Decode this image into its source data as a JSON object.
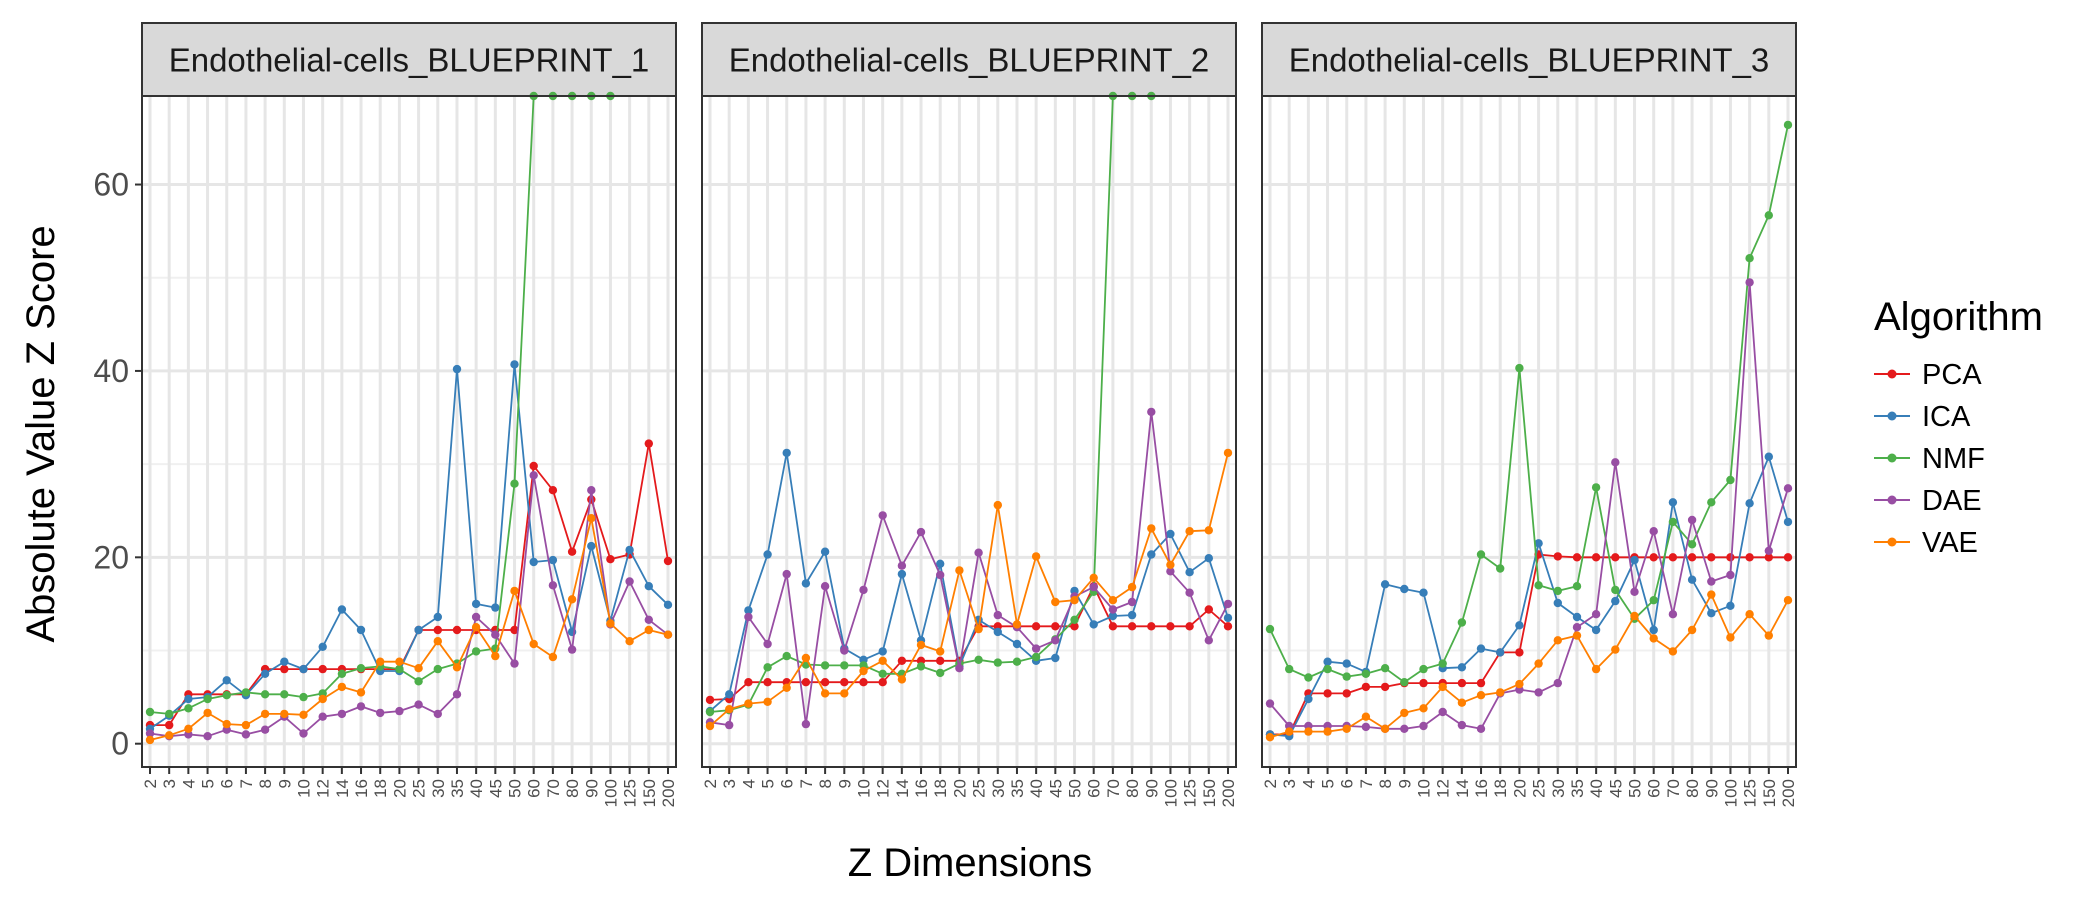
{
  "chart_data": {
    "type": "line",
    "xlabel": "Z Dimensions",
    "ylabel": "Absolute Value Z Score",
    "categories": [
      "2",
      "3",
      "4",
      "5",
      "6",
      "7",
      "8",
      "9",
      "10",
      "12",
      "14",
      "16",
      "18",
      "20",
      "25",
      "30",
      "35",
      "40",
      "45",
      "50",
      "60",
      "70",
      "80",
      "90",
      "100",
      "125",
      "150",
      "200"
    ],
    "ylim": [
      -2.5,
      69.5
    ],
    "yticks": [
      0,
      20,
      40,
      60
    ],
    "grid": true,
    "legend": {
      "title": "Algorithm",
      "position": "right"
    },
    "colors": {
      "PCA": "#e41a1c",
      "ICA": "#377eb8",
      "NMF": "#4daf4a",
      "DAE": "#984ea3",
      "VAE": "#ff7f00"
    },
    "panels": [
      {
        "title": "Endothelial-cells_BLUEPRINT_1",
        "series": [
          {
            "name": "PCA",
            "values": [
              2.0,
              2.0,
              5.3,
              5.3,
              5.3,
              5.3,
              8.0,
              8.0,
              8.0,
              8.0,
              8.0,
              8.0,
              8.0,
              8.0,
              12.2,
              12.2,
              12.2,
              12.2,
              12.2,
              12.2,
              29.8,
              27.2,
              20.6,
              26.2,
              19.8,
              20.3,
              32.2,
              19.6
            ]
          },
          {
            "name": "ICA",
            "values": [
              1.6,
              3.0,
              4.8,
              5.0,
              6.8,
              5.2,
              7.5,
              8.8,
              8.0,
              10.4,
              14.4,
              12.2,
              7.8,
              7.8,
              12.2,
              13.6,
              40.2,
              15.0,
              14.6,
              40.7,
              19.5,
              19.7,
              12.0,
              21.2,
              13.2,
              20.8,
              16.9,
              14.9
            ]
          },
          {
            "name": "NMF",
            "values": [
              3.4,
              3.2,
              3.8,
              4.8,
              5.2,
              5.5,
              5.3,
              5.3,
              5.0,
              5.4,
              7.5,
              8.1,
              8.3,
              8.0,
              6.7,
              8.0,
              8.6,
              9.9,
              10.2,
              27.9,
              69.5,
              69.5,
              69.5,
              69.5,
              69.5,
              null,
              null,
              null
            ]
          },
          {
            "name": "DAE",
            "values": [
              1.1,
              0.8,
              1.0,
              0.8,
              1.5,
              1.0,
              1.5,
              2.9,
              1.1,
              2.9,
              3.2,
              4.0,
              3.3,
              3.5,
              4.2,
              3.2,
              5.3,
              13.6,
              11.7,
              8.6,
              28.8,
              17.0,
              10.1,
              27.2,
              12.8,
              17.4,
              13.3,
              11.7
            ]
          },
          {
            "name": "VAE",
            "values": [
              0.4,
              0.9,
              1.6,
              3.3,
              2.1,
              2.0,
              3.2,
              3.2,
              3.1,
              4.8,
              6.1,
              5.5,
              8.8,
              8.8,
              8.1,
              11.0,
              8.2,
              12.5,
              9.4,
              16.4,
              10.7,
              9.3,
              15.5,
              24.2,
              12.9,
              11.0,
              12.2,
              11.7
            ]
          }
        ]
      },
      {
        "title": "Endothelial-cells_BLUEPRINT_2",
        "series": [
          {
            "name": "PCA",
            "values": [
              4.7,
              4.8,
              6.6,
              6.6,
              6.6,
              6.6,
              6.6,
              6.6,
              6.6,
              6.6,
              8.9,
              8.9,
              8.9,
              8.9,
              12.6,
              12.6,
              12.6,
              12.6,
              12.6,
              12.6,
              16.9,
              12.6,
              12.6,
              12.6,
              12.6,
              12.6,
              14.4,
              12.6
            ]
          },
          {
            "name": "ICA",
            "values": [
              3.5,
              5.3,
              14.3,
              20.3,
              31.2,
              17.2,
              20.6,
              10.2,
              9.0,
              9.9,
              18.2,
              11.1,
              19.3,
              8.3,
              13.3,
              12.0,
              10.7,
              8.9,
              9.2,
              16.4,
              12.8,
              13.7,
              13.8,
              20.3,
              22.5,
              18.4,
              19.9,
              13.5
            ]
          },
          {
            "name": "NMF",
            "values": [
              3.4,
              3.6,
              4.2,
              8.2,
              9.4,
              8.5,
              8.4,
              8.4,
              8.4,
              7.5,
              7.5,
              8.3,
              7.6,
              8.6,
              9.0,
              8.7,
              8.8,
              9.3,
              11.2,
              13.3,
              16.3,
              69.5,
              69.5,
              69.5,
              null,
              null,
              null,
              null
            ]
          },
          {
            "name": "DAE",
            "values": [
              2.3,
              2.0,
              13.6,
              10.7,
              18.2,
              2.1,
              16.9,
              10.0,
              16.5,
              24.5,
              19.1,
              22.7,
              18.1,
              8.1,
              20.5,
              13.8,
              12.5,
              10.2,
              11.1,
              15.8,
              16.8,
              14.4,
              15.2,
              35.6,
              18.5,
              16.2,
              11.1,
              15.0
            ]
          },
          {
            "name": "VAE",
            "values": [
              1.9,
              3.7,
              4.3,
              4.5,
              6.0,
              9.2,
              5.4,
              5.4,
              7.8,
              8.9,
              6.9,
              10.6,
              9.9,
              18.6,
              12.3,
              25.6,
              12.8,
              20.1,
              15.2,
              15.4,
              17.8,
              15.4,
              16.8,
              23.1,
              19.2,
              22.8,
              22.9,
              31.2
            ]
          }
        ]
      },
      {
        "title": "Endothelial-cells_BLUEPRINT_3",
        "series": [
          {
            "name": "PCA",
            "values": [
              1.0,
              1.0,
              5.4,
              5.4,
              5.4,
              6.1,
              6.1,
              6.5,
              6.5,
              6.5,
              6.5,
              6.5,
              9.8,
              9.8,
              20.3,
              20.1,
              20.0,
              20.0,
              20.0,
              20.0,
              20.0,
              20.0,
              20.0,
              20.0,
              20.0,
              20.0,
              20.0,
              20.0
            ]
          },
          {
            "name": "ICA",
            "values": [
              1.0,
              0.8,
              4.8,
              8.8,
              8.6,
              7.7,
              17.1,
              16.6,
              16.2,
              8.1,
              8.2,
              10.2,
              9.8,
              12.7,
              21.5,
              15.1,
              13.6,
              12.2,
              15.3,
              19.7,
              12.2,
              25.9,
              17.6,
              14.0,
              14.8,
              25.8,
              30.8,
              23.8
            ]
          },
          {
            "name": "NMF",
            "values": [
              12.3,
              8.0,
              7.1,
              8.0,
              7.2,
              7.5,
              8.1,
              6.6,
              8.0,
              8.6,
              13.0,
              20.3,
              18.8,
              40.3,
              17.0,
              16.4,
              16.9,
              27.5,
              16.5,
              13.4,
              15.4,
              23.8,
              21.4,
              25.9,
              28.3,
              52.1,
              56.7,
              66.4
            ]
          },
          {
            "name": "DAE",
            "values": [
              4.3,
              1.9,
              1.9,
              1.9,
              1.9,
              1.8,
              1.6,
              1.6,
              1.9,
              3.4,
              2.0,
              1.6,
              5.4,
              5.8,
              5.5,
              6.5,
              12.5,
              13.9,
              30.2,
              16.3,
              22.8,
              13.9,
              24.0,
              17.4,
              18.1,
              49.5,
              20.7,
              27.4
            ]
          },
          {
            "name": "VAE",
            "values": [
              0.7,
              1.3,
              1.3,
              1.3,
              1.6,
              2.9,
              1.6,
              3.3,
              3.8,
              6.1,
              4.4,
              5.2,
              5.5,
              6.4,
              8.6,
              11.1,
              11.6,
              8.0,
              10.1,
              13.7,
              11.3,
              9.9,
              12.2,
              16.0,
              11.4,
              13.9,
              11.6,
              15.4
            ]
          }
        ]
      }
    ]
  }
}
